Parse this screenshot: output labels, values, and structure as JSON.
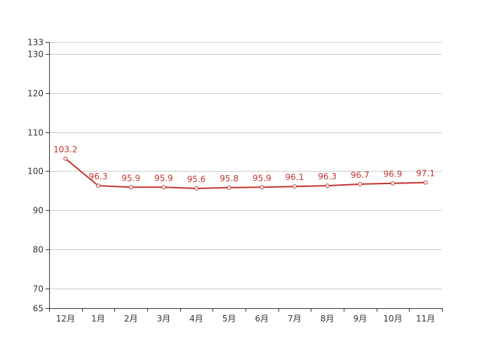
{
  "chart_data": {
    "type": "line",
    "categories": [
      "12月",
      "1月",
      "2月",
      "3月",
      "4月",
      "5月",
      "6月",
      "7月",
      "8月",
      "9月",
      "10月",
      "11月"
    ],
    "series": [
      {
        "values": [
          103.2,
          96.3,
          95.9,
          95.9,
          95.6,
          95.8,
          95.9,
          96.1,
          96.3,
          96.7,
          96.9,
          97.1
        ],
        "color": "#c23531"
      }
    ],
    "ylim": [
      65,
      133
    ],
    "yticks": [
      65,
      70,
      80,
      90,
      100,
      110,
      120,
      130,
      133
    ],
    "grid": true,
    "legend": "none",
    "data_labels": true,
    "title": "",
    "xlabel": "",
    "ylabel": ""
  }
}
